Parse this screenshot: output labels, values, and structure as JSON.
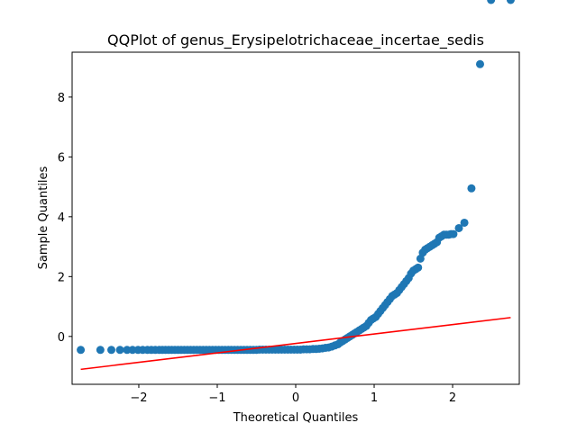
{
  "chart_data": {
    "type": "scatter",
    "title": "QQPlot of genus_Erysipelotrichaceae_incertae_sedis",
    "xlabel": "Theoretical Quantiles",
    "ylabel": "Sample Quantiles",
    "xlim": [
      -2.85,
      2.85
    ],
    "ylim": [
      -1.6,
      9.5
    ],
    "xticks": [
      -2,
      -1,
      0,
      1,
      2
    ],
    "xtick_labels": [
      "−2",
      "−1",
      "0",
      "1",
      "2"
    ],
    "yticks": [
      0,
      2,
      4,
      6,
      8
    ],
    "ytick_labels": [
      "0",
      "2",
      "4",
      "6",
      "8"
    ],
    "grid": false,
    "colors": {
      "points": "#1f77b4",
      "line": "#ff0000"
    },
    "reference_line": {
      "x": [
        -2.74,
        2.74
      ],
      "y": [
        -1.1,
        0.63
      ]
    },
    "points_x": [
      -2.74,
      -2.49,
      -2.35,
      -2.24,
      -2.15,
      -2.08,
      -2.01,
      -1.95,
      -1.89,
      -1.84,
      -1.79,
      -1.74,
      -1.7,
      -1.66,
      -1.62,
      -1.58,
      -1.54,
      -1.5,
      -1.46,
      -1.42,
      -1.38,
      -1.34,
      -1.3,
      -1.26,
      -1.22,
      -1.18,
      -1.14,
      -1.1,
      -1.06,
      -1.02,
      -0.98,
      -0.94,
      -0.9,
      -0.86,
      -0.82,
      -0.78,
      -0.74,
      -0.7,
      -0.66,
      -0.62,
      -0.58,
      -0.54,
      -0.5,
      -0.46,
      -0.42,
      -0.38,
      -0.34,
      -0.3,
      -0.26,
      -0.22,
      -0.18,
      -0.14,
      -0.1,
      -0.06,
      -0.02,
      0.02,
      0.06,
      0.1,
      0.14,
      0.18,
      0.22,
      0.26,
      0.3,
      0.34,
      0.38,
      0.42,
      0.46,
      0.5,
      0.54,
      0.57,
      0.6,
      0.63,
      0.66,
      0.69,
      0.72,
      0.75,
      0.78,
      0.81,
      0.84,
      0.87,
      0.9,
      0.93,
      0.96,
      0.99,
      1.02,
      1.05,
      1.08,
      1.11,
      1.14,
      1.17,
      1.2,
      1.23,
      1.26,
      1.29,
      1.32,
      1.35,
      1.38,
      1.41,
      1.44,
      1.47,
      1.5,
      1.53,
      1.56,
      1.59,
      1.62,
      1.65,
      1.68,
      1.71,
      1.74,
      1.77,
      1.8,
      1.83,
      1.86,
      1.89,
      1.92,
      1.95,
      1.98,
      2.01,
      2.08,
      2.15,
      2.24,
      2.35,
      2.49,
      2.74
    ],
    "points_y": [
      -0.45,
      -0.45,
      -0.45,
      -0.45,
      -0.45,
      -0.45,
      -0.45,
      -0.45,
      -0.45,
      -0.45,
      -0.45,
      -0.45,
      -0.45,
      -0.45,
      -0.45,
      -0.45,
      -0.45,
      -0.45,
      -0.45,
      -0.45,
      -0.45,
      -0.45,
      -0.45,
      -0.45,
      -0.45,
      -0.45,
      -0.45,
      -0.45,
      -0.45,
      -0.45,
      -0.45,
      -0.45,
      -0.45,
      -0.45,
      -0.45,
      -0.45,
      -0.45,
      -0.45,
      -0.45,
      -0.45,
      -0.45,
      -0.45,
      -0.45,
      -0.44,
      -0.44,
      -0.44,
      -0.44,
      -0.44,
      -0.44,
      -0.44,
      -0.44,
      -0.44,
      -0.44,
      -0.44,
      -0.44,
      -0.44,
      -0.44,
      -0.43,
      -0.43,
      -0.43,
      -0.42,
      -0.42,
      -0.41,
      -0.4,
      -0.38,
      -0.37,
      -0.34,
      -0.3,
      -0.26,
      -0.2,
      -0.15,
      -0.1,
      -0.05,
      0.0,
      0.05,
      0.1,
      0.15,
      0.2,
      0.25,
      0.3,
      0.35,
      0.45,
      0.55,
      0.6,
      0.65,
      0.75,
      0.85,
      0.95,
      1.05,
      1.15,
      1.25,
      1.35,
      1.4,
      1.45,
      1.55,
      1.65,
      1.75,
      1.85,
      1.95,
      2.1,
      2.2,
      2.25,
      2.3,
      2.6,
      2.8,
      2.9,
      2.95,
      3.0,
      3.05,
      3.1,
      3.15,
      3.3,
      3.35,
      3.4,
      3.4,
      3.4,
      3.42,
      3.42,
      3.62,
      3.8,
      4.95,
      9.1
    ]
  }
}
